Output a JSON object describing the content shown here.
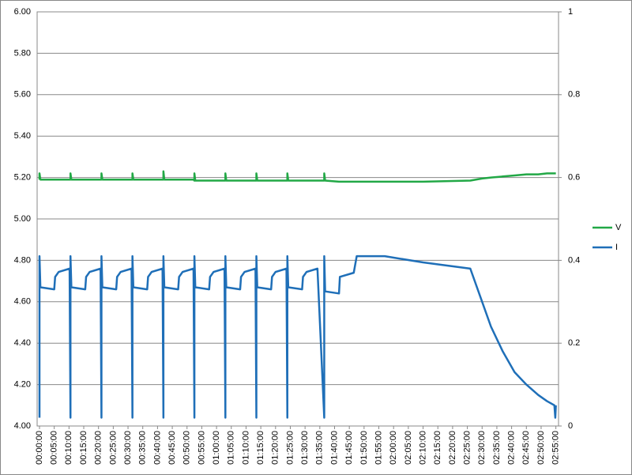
{
  "chart_data": {
    "type": "line",
    "x": [
      0,
      0,
      0.3,
      5,
      5.3,
      6.5,
      10.2,
      10.5,
      10.5,
      10.8,
      15.5,
      15.8,
      17,
      20.7,
      21,
      21,
      21.3,
      26,
      26.3,
      27.5,
      31.2,
      31.5,
      31.5,
      31.8,
      36.5,
      36.8,
      38,
      41.7,
      42,
      42,
      42.3,
      47,
      47.3,
      48.5,
      52.2,
      52.5,
      52.5,
      52.8,
      57.5,
      57.8,
      59,
      62.7,
      63,
      63,
      63.3,
      68,
      68.3,
      69.5,
      73.2,
      73.5,
      73.5,
      73.8,
      78.5,
      78.8,
      80,
      83.7,
      84,
      84,
      84.3,
      89,
      89.3,
      90.5,
      94.2,
      96.5,
      96.5,
      96.8,
      101.5,
      101.8,
      106.5,
      107.5,
      110,
      117,
      130,
      146,
      150,
      153,
      157,
      161,
      165,
      169,
      172,
      174.5,
      174.8,
      175
    ],
    "series": [
      {
        "name": "V",
        "color": "#22a846",
        "values": [
          5.19,
          5.22,
          5.19,
          5.19,
          5.19,
          5.19,
          5.19,
          5.19,
          5.22,
          5.19,
          5.19,
          5.19,
          5.19,
          5.19,
          5.19,
          5.22,
          5.19,
          5.19,
          5.19,
          5.19,
          5.19,
          5.19,
          5.22,
          5.19,
          5.19,
          5.19,
          5.19,
          5.19,
          5.19,
          5.23,
          5.19,
          5.19,
          5.19,
          5.19,
          5.19,
          5.185,
          5.22,
          5.185,
          5.185,
          5.185,
          5.185,
          5.185,
          5.185,
          5.22,
          5.185,
          5.185,
          5.185,
          5.185,
          5.185,
          5.185,
          5.22,
          5.185,
          5.185,
          5.185,
          5.185,
          5.185,
          5.185,
          5.22,
          5.185,
          5.185,
          5.185,
          5.185,
          5.185,
          5.185,
          5.22,
          5.185,
          5.18,
          5.18,
          5.18,
          5.18,
          5.18,
          5.18,
          5.18,
          5.185,
          5.195,
          5.2,
          5.205,
          5.21,
          5.215,
          5.215,
          5.22,
          5.22,
          5.22,
          5.22
        ]
      },
      {
        "name": "I",
        "color": "#1f6fb8",
        "axis": "y2",
        "values": [
          0.02,
          0.41,
          0.335,
          0.33,
          0.36,
          0.372,
          0.38,
          0.02,
          0.41,
          0.335,
          0.33,
          0.36,
          0.372,
          0.38,
          0.02,
          0.41,
          0.335,
          0.33,
          0.36,
          0.372,
          0.38,
          0.02,
          0.41,
          0.335,
          0.33,
          0.36,
          0.372,
          0.38,
          0.02,
          0.41,
          0.335,
          0.33,
          0.36,
          0.372,
          0.38,
          0.02,
          0.41,
          0.335,
          0.33,
          0.36,
          0.372,
          0.38,
          0.02,
          0.41,
          0.335,
          0.33,
          0.36,
          0.372,
          0.38,
          0.02,
          0.41,
          0.335,
          0.33,
          0.36,
          0.372,
          0.38,
          0.02,
          0.41,
          0.335,
          0.33,
          0.36,
          0.372,
          0.38,
          0.02,
          0.41,
          0.325,
          0.32,
          0.36,
          0.37,
          0.41,
          0.41,
          0.41,
          0.395,
          0.38,
          0.3,
          0.24,
          0.18,
          0.13,
          0.1,
          0.075,
          0.06,
          0.05,
          0.02,
          0.05
        ]
      }
    ],
    "xlim": [
      -0.8,
      175.9
    ],
    "xticks": [
      {
        "value": 0,
        "label": "00:00:00"
      },
      {
        "value": 5,
        "label": "00:05:00"
      },
      {
        "value": 10,
        "label": "00:10:00"
      },
      {
        "value": 15,
        "label": "00:15:00"
      },
      {
        "value": 20,
        "label": "00:20:00"
      },
      {
        "value": 25,
        "label": "00:25:00"
      },
      {
        "value": 30,
        "label": "00:30:00"
      },
      {
        "value": 35,
        "label": "00:35:00"
      },
      {
        "value": 40,
        "label": "00:40:00"
      },
      {
        "value": 45,
        "label": "00:45:00"
      },
      {
        "value": 50,
        "label": "00:50:00"
      },
      {
        "value": 55,
        "label": "00:55:00"
      },
      {
        "value": 60,
        "label": "01:00:00"
      },
      {
        "value": 65,
        "label": "01:05:00"
      },
      {
        "value": 70,
        "label": "01:10:00"
      },
      {
        "value": 75,
        "label": "01:15:00"
      },
      {
        "value": 80,
        "label": "01:20:00"
      },
      {
        "value": 85,
        "label": "01:25:00"
      },
      {
        "value": 90,
        "label": "01:30:00"
      },
      {
        "value": 95,
        "label": "01:35:00"
      },
      {
        "value": 100,
        "label": "01:40:00"
      },
      {
        "value": 105,
        "label": "01:45:00"
      },
      {
        "value": 110,
        "label": "01:50:00"
      },
      {
        "value": 115,
        "label": "01:55:00"
      },
      {
        "value": 120,
        "label": "02:00:00"
      },
      {
        "value": 125,
        "label": "02:05:00"
      },
      {
        "value": 130,
        "label": "02:10:00"
      },
      {
        "value": 135,
        "label": "02:15:00"
      },
      {
        "value": 140,
        "label": "02:20:00"
      },
      {
        "value": 145,
        "label": "02:25:00"
      },
      {
        "value": 150,
        "label": "02:30:00"
      },
      {
        "value": 155,
        "label": "02:35:00"
      },
      {
        "value": 160,
        "label": "02:40:00"
      },
      {
        "value": 165,
        "label": "02:45:00"
      },
      {
        "value": 170,
        "label": "02:50:00"
      },
      {
        "value": 175,
        "label": "02:55:00"
      }
    ],
    "ylim": [
      4,
      6
    ],
    "yticks": [
      {
        "value": 4,
        "label": "4.00"
      },
      {
        "value": 4.2,
        "label": "4.20"
      },
      {
        "value": 4.4,
        "label": "4.40"
      },
      {
        "value": 4.6,
        "label": "4.60"
      },
      {
        "value": 4.8,
        "label": "4.80"
      },
      {
        "value": 5,
        "label": "5.00"
      },
      {
        "value": 5.2,
        "label": "5.20"
      },
      {
        "value": 5.4,
        "label": "5.40"
      },
      {
        "value": 5.6,
        "label": "5.60"
      },
      {
        "value": 5.8,
        "label": "5.80"
      },
      {
        "value": 6,
        "label": "6.00"
      }
    ],
    "y2lim": [
      0,
      1
    ],
    "y2ticks": [
      0,
      0.2,
      0.4,
      0.6,
      0.8,
      1
    ],
    "grid": true,
    "legend": "right"
  }
}
